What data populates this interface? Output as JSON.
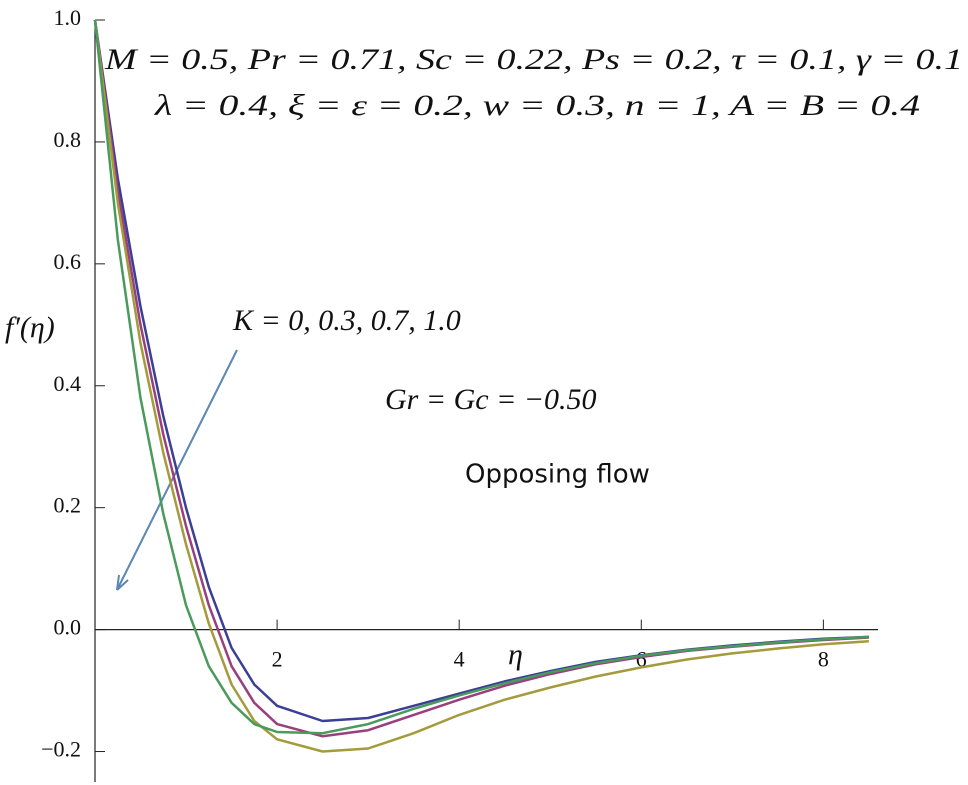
{
  "chart_data": {
    "type": "line",
    "annotations": [
      "M = 0.5, Pr = 0.71, Sc = 0.22, Ps = 0.2, τ = 0.1, γ = 0.1",
      "λ = 0.4, ξ = ε = 0.2, w = 0.3, n = 1, A = B = 0.4",
      "K = 0, 0.3, 0.7, 1.0",
      "Gr = Gc = −0.50",
      "Opposing flow"
    ],
    "xlabel": "η",
    "ylabel": "f′(η)",
    "x": [
      0,
      0.25,
      0.5,
      0.75,
      1,
      1.25,
      1.5,
      1.75,
      2,
      2.5,
      3,
      3.5,
      4,
      4.5,
      5,
      5.5,
      6,
      6.5,
      7,
      7.5,
      8,
      8.5
    ],
    "series": [
      {
        "color": "#3b3f95",
        "values": [
          1,
          0.74,
          0.53,
          0.35,
          0.2,
          0.07,
          -0.03,
          -0.09,
          -0.125,
          -0.15,
          -0.145,
          -0.125,
          -0.105,
          -0.085,
          -0.068,
          -0.053,
          -0.042,
          -0.033,
          -0.026,
          -0.02,
          -0.015,
          -0.012
        ]
      },
      {
        "color": "#9a3f7e",
        "values": [
          1,
          0.72,
          0.5,
          0.32,
          0.17,
          0.04,
          -0.06,
          -0.12,
          -0.155,
          -0.175,
          -0.165,
          -0.14,
          -0.115,
          -0.092,
          -0.073,
          -0.057,
          -0.045,
          -0.035,
          -0.028,
          -0.022,
          -0.017,
          -0.013
        ]
      },
      {
        "color": "#a39b3c",
        "values": [
          1,
          0.7,
          0.47,
          0.29,
          0.14,
          0.01,
          -0.09,
          -0.15,
          -0.18,
          -0.2,
          -0.195,
          -0.17,
          -0.14,
          -0.115,
          -0.095,
          -0.077,
          -0.062,
          -0.049,
          -0.039,
          -0.031,
          -0.024,
          -0.019
        ]
      },
      {
        "color": "#4a9a5c",
        "values": [
          1,
          0.64,
          0.38,
          0.19,
          0.04,
          -0.06,
          -0.12,
          -0.155,
          -0.168,
          -0.17,
          -0.155,
          -0.13,
          -0.108,
          -0.088,
          -0.07,
          -0.055,
          -0.043,
          -0.034,
          -0.027,
          -0.021,
          -0.016,
          -0.012
        ]
      }
    ],
    "xlim": [
      0,
      8.6
    ],
    "ylim": [
      -0.25,
      1.0
    ],
    "xticks": [
      2,
      4,
      6,
      8
    ],
    "yticks": [
      {
        "value": -0.2,
        "label": "−0.2"
      },
      {
        "value": 0,
        "label": "0.0"
      },
      {
        "value": 0.2,
        "label": "0.2"
      },
      {
        "value": 0.4,
        "label": "0.4"
      },
      {
        "value": 0.6,
        "label": "0.6"
      },
      {
        "value": 0.8,
        "label": "0.8"
      },
      {
        "value": 1.0,
        "label": "1.0"
      }
    ]
  }
}
